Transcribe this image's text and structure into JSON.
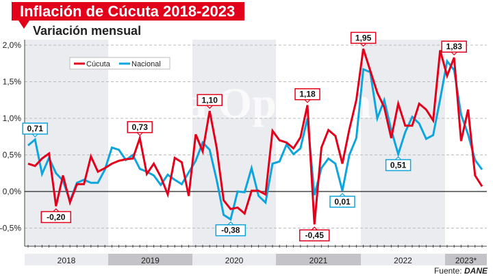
{
  "header": {
    "title": "Inflación de Cúcuta 2018-2023",
    "subtitle": "Variación mensual"
  },
  "watermark": "La Opinión",
  "source": {
    "label": "Fuente:",
    "name": "DANE"
  },
  "colors": {
    "cucuta": "#e2001a",
    "nacional": "#0ea5dc",
    "band_dark": "#c4c4c8",
    "band_light": "#ebecf0"
  },
  "chart_data": {
    "type": "line",
    "title": "Inflación de Cúcuta 2018-2023",
    "subtitle": "Variación mensual",
    "xlabel": "",
    "ylabel": "",
    "ylim": [
      -0.8,
      2.0
    ],
    "yticks": [
      "2,0%",
      "1,5%",
      "1,0%",
      "0,5%",
      "0,0%",
      "-0,5%"
    ],
    "ytick_values": [
      2.0,
      1.5,
      1.0,
      0.5,
      0.0,
      -0.5
    ],
    "year_labels": [
      "2018",
      "2019",
      "2020",
      "2021",
      "2022",
      "2023*"
    ],
    "months_per_year": [
      12,
      12,
      12,
      12,
      12,
      6
    ],
    "grid": true,
    "legend_position": "top-left",
    "series": [
      {
        "name": "Cúcuta",
        "color": "#e2001a",
        "values": [
          0.38,
          0.35,
          0.45,
          0.52,
          -0.2,
          0.22,
          -0.15,
          0.1,
          0.1,
          0.48,
          0.27,
          0.32,
          0.38,
          0.42,
          0.44,
          0.45,
          0.73,
          0.24,
          0.38,
          0.2,
          -0.04,
          0.46,
          0.4,
          -0.06,
          0.78,
          0.55,
          1.1,
          0.6,
          -0.12,
          -0.24,
          -0.22,
          -0.3,
          0.01,
          0.01,
          -0.04,
          0.83,
          0.7,
          0.67,
          0.59,
          0.74,
          1.18,
          -0.45,
          0.6,
          0.84,
          0.76,
          0.38,
          0.85,
          1.25,
          1.95,
          1.65,
          1.35,
          1.15,
          0.73,
          1.2,
          0.9,
          0.9,
          1.2,
          1.12,
          0.97,
          1.93,
          1.58,
          1.83,
          0.69,
          1.12,
          0.22,
          0.07
        ]
      },
      {
        "name": "Nacional",
        "color": "#0ea5dc",
        "values": [
          0.63,
          0.71,
          0.24,
          0.46,
          0.25,
          0.15,
          -0.13,
          0.12,
          0.16,
          0.12,
          0.12,
          0.3,
          0.6,
          0.57,
          0.43,
          0.5,
          0.31,
          0.27,
          0.22,
          0.09,
          0.23,
          0.16,
          0.1,
          0.26,
          0.42,
          0.67,
          0.57,
          0.16,
          -0.32,
          -0.38,
          0.0,
          -0.01,
          0.32,
          -0.06,
          -0.15,
          0.38,
          0.41,
          0.64,
          0.51,
          0.59,
          1.0,
          -0.05,
          0.32,
          0.45,
          0.38,
          0.01,
          0.5,
          0.73,
          1.67,
          1.63,
          1.0,
          1.25,
          0.84,
          0.51,
          0.81,
          1.02,
          0.93,
          0.72,
          0.77,
          1.26,
          1.78,
          1.66,
          1.05,
          0.78,
          0.43,
          0.3
        ]
      }
    ],
    "annotations": [
      {
        "series": "Nacional",
        "index": 1,
        "label": "0,71",
        "position": "above"
      },
      {
        "series": "Cúcuta",
        "index": 4,
        "label": "-0,20",
        "position": "below"
      },
      {
        "series": "Cúcuta",
        "index": 16,
        "label": "0,73",
        "position": "above"
      },
      {
        "series": "Cúcuta",
        "index": 26,
        "label": "1,10",
        "position": "above"
      },
      {
        "series": "Nacional",
        "index": 29,
        "label": "-0,38",
        "position": "below"
      },
      {
        "series": "Cúcuta",
        "index": 40,
        "label": "1,18",
        "position": "above"
      },
      {
        "series": "Cúcuta",
        "index": 41,
        "label": "-0,45",
        "position": "below"
      },
      {
        "series": "Nacional",
        "index": 45,
        "label": "0,01",
        "position": "below"
      },
      {
        "series": "Cúcuta",
        "index": 48,
        "label": "1,95",
        "position": "above"
      },
      {
        "series": "Nacional",
        "index": 53,
        "label": "0,51",
        "position": "below"
      },
      {
        "series": "Cúcuta",
        "index": 61,
        "label": "1,83",
        "position": "above"
      }
    ]
  }
}
